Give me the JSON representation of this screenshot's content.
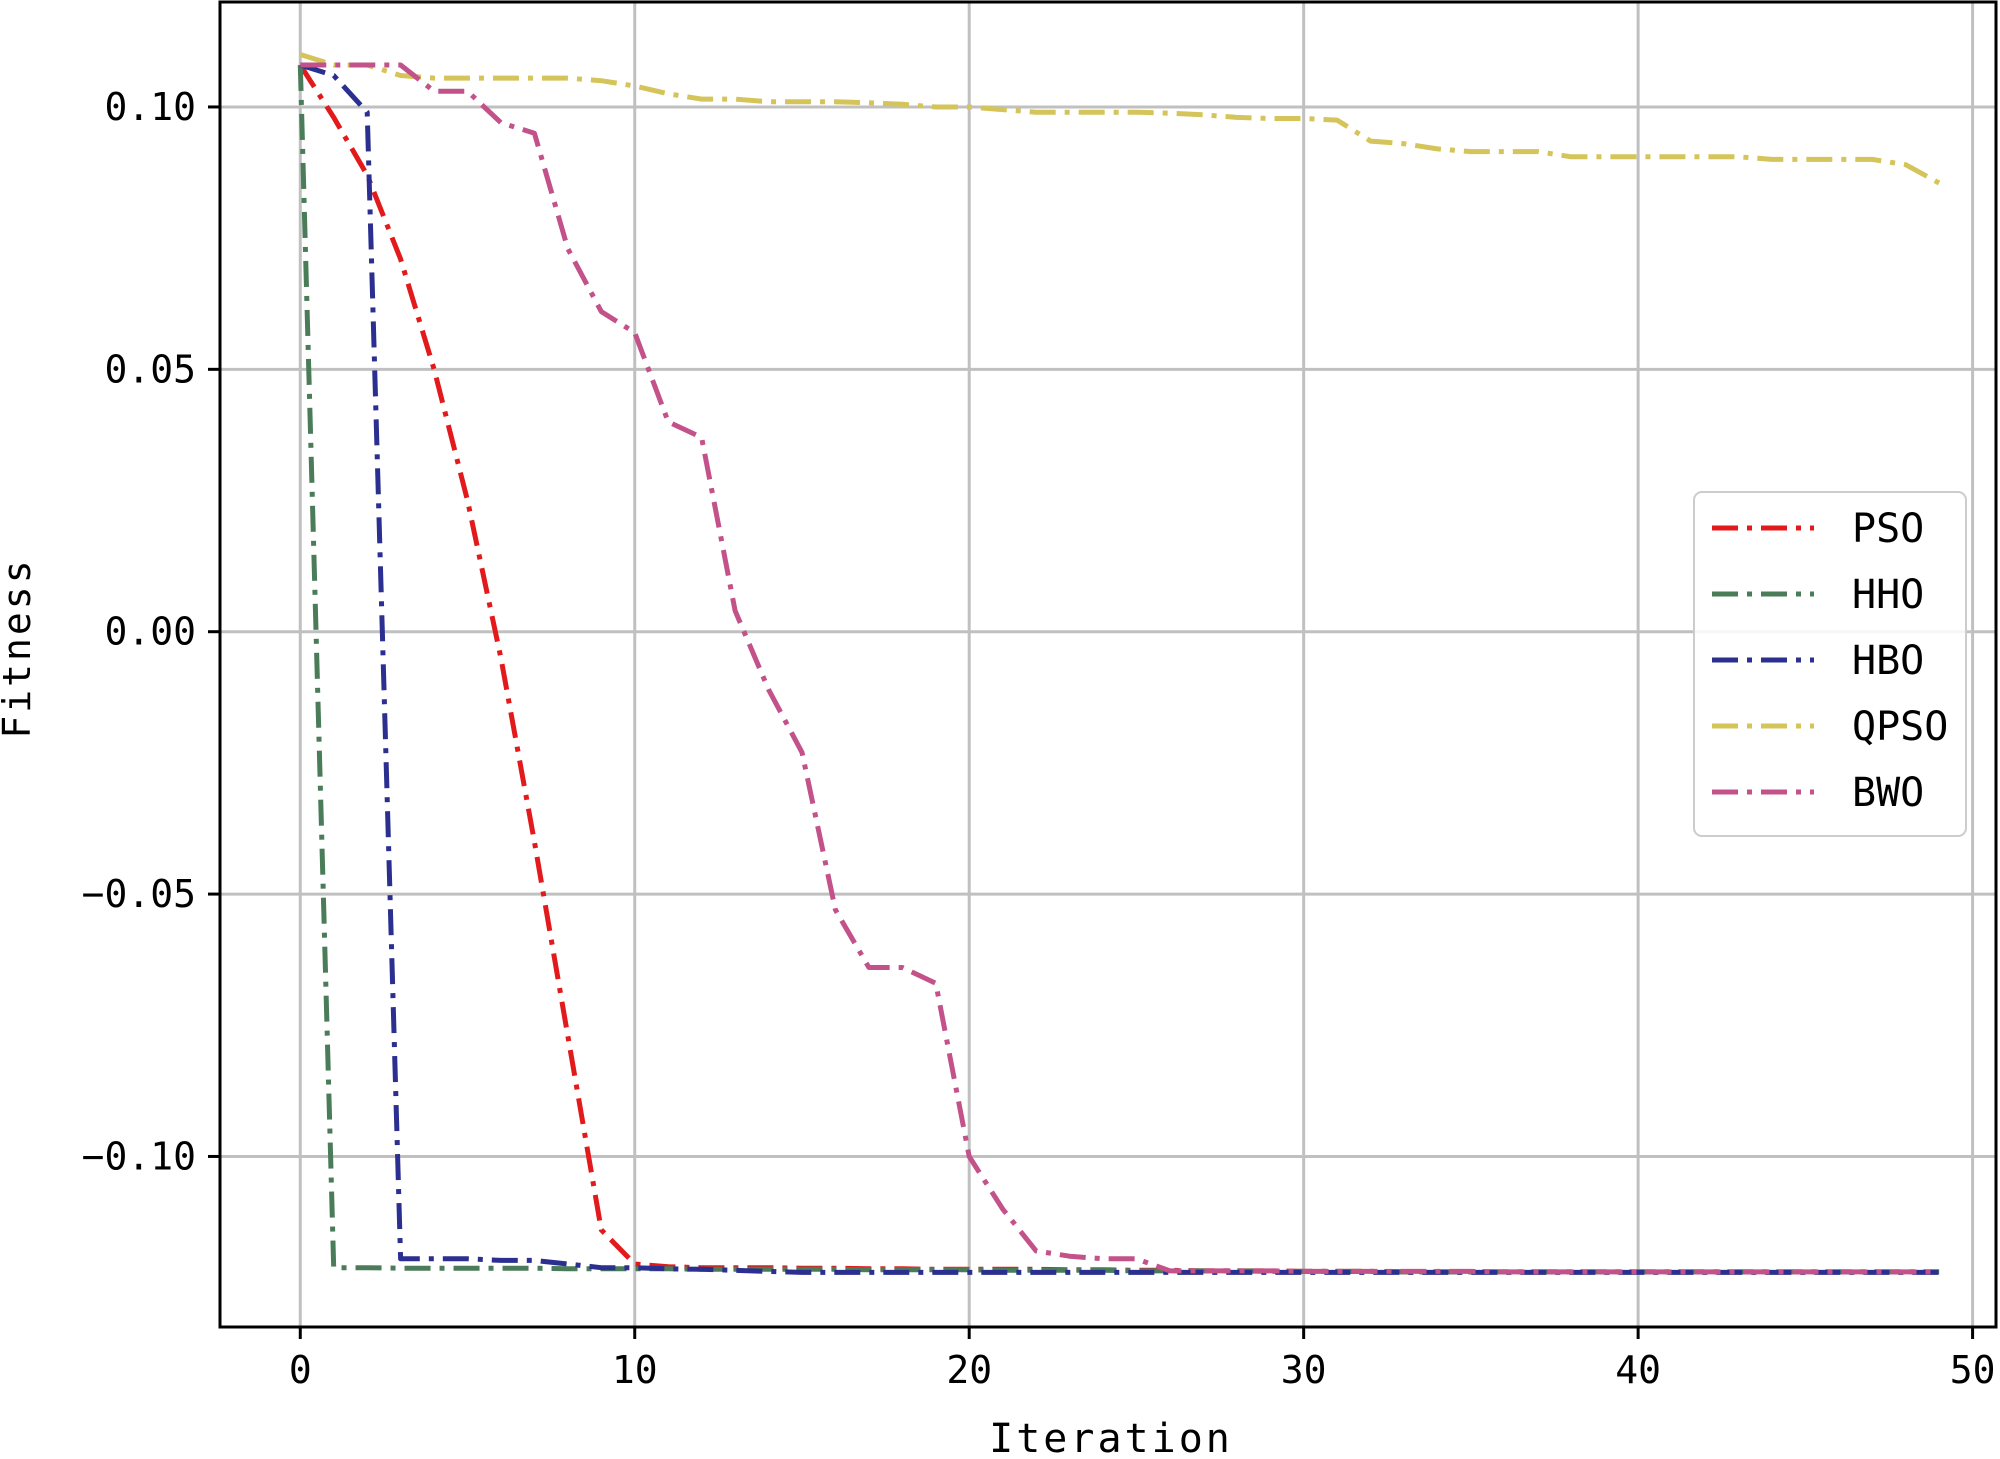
{
  "chart_data": {
    "type": "line",
    "title": "",
    "xlabel": "Iteration",
    "ylabel": "Fitness",
    "xlim": [
      -2.4,
      50.7
    ],
    "ylim": [
      -0.1325,
      0.12
    ],
    "xticks": [
      0,
      10,
      20,
      30,
      40,
      50
    ],
    "yticks": [
      0.1,
      0.05,
      0.0,
      -0.05,
      -0.1
    ],
    "xtick_labels": [
      "0",
      "10",
      "20",
      "30",
      "40",
      "50"
    ],
    "ytick_labels": [
      "0.10",
      "0.05",
      "0.00",
      "−0.05",
      "−0.10"
    ],
    "grid": true,
    "legend_position": "center-right",
    "line_style": "dash-dot",
    "series": [
      {
        "name": "PSO",
        "color": "#e31a1c",
        "x": [
          0,
          1,
          2,
          3,
          4,
          5,
          6,
          7,
          8,
          9,
          10,
          11,
          12,
          13,
          14,
          15,
          16,
          17,
          18,
          19,
          20,
          21,
          22,
          23,
          24,
          25,
          26,
          27,
          28,
          29,
          30,
          31,
          32,
          33,
          34,
          35,
          36,
          37,
          38,
          39,
          40,
          41,
          42,
          43,
          44,
          45,
          46,
          47,
          48,
          49
        ],
        "y": [
          0.108,
          0.098,
          0.087,
          0.071,
          0.05,
          0.025,
          -0.005,
          -0.04,
          -0.077,
          -0.114,
          -0.1205,
          -0.121,
          -0.1212,
          -0.1212,
          -0.1212,
          -0.1213,
          -0.1213,
          -0.1214,
          -0.1214,
          -0.1215,
          -0.1215,
          -0.1215,
          -0.1215,
          -0.1216,
          -0.1216,
          -0.1217,
          -0.1217,
          -0.1218,
          -0.1218,
          -0.1218,
          -0.1219,
          -0.1219,
          -0.1219,
          -0.122,
          -0.122,
          -0.122,
          -0.122,
          -0.122,
          -0.122,
          -0.122,
          -0.122,
          -0.122,
          -0.122,
          -0.122,
          -0.122,
          -0.122,
          -0.122,
          -0.122,
          -0.122,
          -0.122
        ]
      },
      {
        "name": "HHO",
        "color": "#4a7c59",
        "x": [
          0,
          1,
          2,
          3,
          4,
          5,
          6,
          7,
          8,
          9,
          10,
          11,
          12,
          13,
          14,
          15,
          16,
          17,
          18,
          19,
          20,
          21,
          22,
          23,
          24,
          25,
          26,
          27,
          28,
          29,
          30,
          31,
          32,
          33,
          34,
          35,
          36,
          37,
          38,
          39,
          40,
          41,
          42,
          43,
          44,
          45,
          46,
          47,
          48,
          49
        ],
        "y": [
          0.108,
          -0.1212,
          -0.1212,
          -0.1213,
          -0.1213,
          -0.1213,
          -0.1213,
          -0.1213,
          -0.1214,
          -0.1214,
          -0.1214,
          -0.1214,
          -0.1215,
          -0.1215,
          -0.1215,
          -0.1215,
          -0.1215,
          -0.1216,
          -0.1216,
          -0.1216,
          -0.1216,
          -0.1217,
          -0.1217,
          -0.1217,
          -0.1217,
          -0.1218,
          -0.1218,
          -0.1218,
          -0.1218,
          -0.1219,
          -0.1219,
          -0.1219,
          -0.1219,
          -0.122,
          -0.122,
          -0.122,
          -0.122,
          -0.122,
          -0.122,
          -0.122,
          -0.122,
          -0.122,
          -0.122,
          -0.122,
          -0.122,
          -0.122,
          -0.122,
          -0.122,
          -0.122,
          -0.122
        ]
      },
      {
        "name": "HBO",
        "color": "#2b2f8f",
        "x": [
          0,
          1,
          2,
          3,
          4,
          5,
          6,
          7,
          8,
          9,
          10,
          11,
          12,
          13,
          14,
          15,
          16,
          17,
          18,
          19,
          20,
          21,
          22,
          23,
          24,
          25,
          26,
          27,
          28,
          29,
          30,
          31,
          32,
          33,
          34,
          35,
          36,
          37,
          38,
          39,
          40,
          41,
          42,
          43,
          44,
          45,
          46,
          47,
          48,
          49
        ],
        "y": [
          0.108,
          0.106,
          0.099,
          -0.1195,
          -0.1195,
          -0.1195,
          -0.1198,
          -0.1198,
          -0.1205,
          -0.1212,
          -0.1212,
          -0.1214,
          -0.1215,
          -0.1217,
          -0.1219,
          -0.1221,
          -0.1221,
          -0.1221,
          -0.1221,
          -0.1221,
          -0.1221,
          -0.1221,
          -0.1221,
          -0.1221,
          -0.1221,
          -0.1221,
          -0.1221,
          -0.1221,
          -0.1221,
          -0.1221,
          -0.1221,
          -0.1221,
          -0.1221,
          -0.1221,
          -0.1221,
          -0.1221,
          -0.1221,
          -0.1221,
          -0.1221,
          -0.1221,
          -0.1221,
          -0.1221,
          -0.1221,
          -0.1221,
          -0.1221,
          -0.1221,
          -0.1221,
          -0.1221,
          -0.1221,
          -0.1221
        ]
      },
      {
        "name": "QPSO",
        "color": "#d4c45a",
        "x": [
          0,
          1,
          2,
          3,
          4,
          5,
          6,
          7,
          8,
          9,
          10,
          11,
          12,
          13,
          14,
          15,
          16,
          17,
          18,
          19,
          20,
          21,
          22,
          23,
          24,
          25,
          26,
          27,
          28,
          29,
          30,
          31,
          32,
          33,
          34,
          35,
          36,
          37,
          38,
          39,
          40,
          41,
          42,
          43,
          44,
          45,
          46,
          47,
          48,
          49
        ],
        "y": [
          0.11,
          0.108,
          0.108,
          0.106,
          0.1055,
          0.1055,
          0.1055,
          0.1055,
          0.1055,
          0.105,
          0.104,
          0.1025,
          0.1015,
          0.1015,
          0.101,
          0.101,
          0.101,
          0.1008,
          0.1005,
          0.1,
          0.1,
          0.0995,
          0.099,
          0.099,
          0.099,
          0.099,
          0.0988,
          0.0985,
          0.098,
          0.0978,
          0.0978,
          0.0975,
          0.0935,
          0.093,
          0.092,
          0.0915,
          0.0915,
          0.0915,
          0.0905,
          0.0905,
          0.0905,
          0.0905,
          0.0905,
          0.0905,
          0.09,
          0.09,
          0.09,
          0.09,
          0.089,
          0.0855
        ]
      },
      {
        "name": "BWO",
        "color": "#c3528a",
        "x": [
          0,
          1,
          2,
          3,
          4,
          5,
          6,
          7,
          8,
          9,
          10,
          11,
          12,
          13,
          14,
          15,
          16,
          17,
          18,
          19,
          20,
          21,
          22,
          23,
          24,
          25,
          26,
          27,
          28,
          29,
          30,
          31,
          32,
          33,
          34,
          35,
          36,
          37,
          38,
          39,
          40,
          41,
          42,
          43,
          44,
          45,
          46,
          47,
          48,
          49
        ],
        "y": [
          0.108,
          0.108,
          0.108,
          0.108,
          0.103,
          0.103,
          0.097,
          0.095,
          0.073,
          0.061,
          0.057,
          0.04,
          0.037,
          0.004,
          -0.011,
          -0.023,
          -0.053,
          -0.064,
          -0.064,
          -0.067,
          -0.1,
          -0.11,
          -0.118,
          -0.119,
          -0.1195,
          -0.1195,
          -0.1218,
          -0.1218,
          -0.1218,
          -0.1218,
          -0.1219,
          -0.1219,
          -0.1219,
          -0.1219,
          -0.1219,
          -0.1219,
          -0.122,
          -0.122,
          -0.122,
          -0.122,
          -0.122,
          -0.122,
          -0.122,
          -0.122,
          -0.122,
          -0.122,
          -0.122,
          -0.122,
          -0.122,
          -0.122
        ]
      }
    ]
  }
}
